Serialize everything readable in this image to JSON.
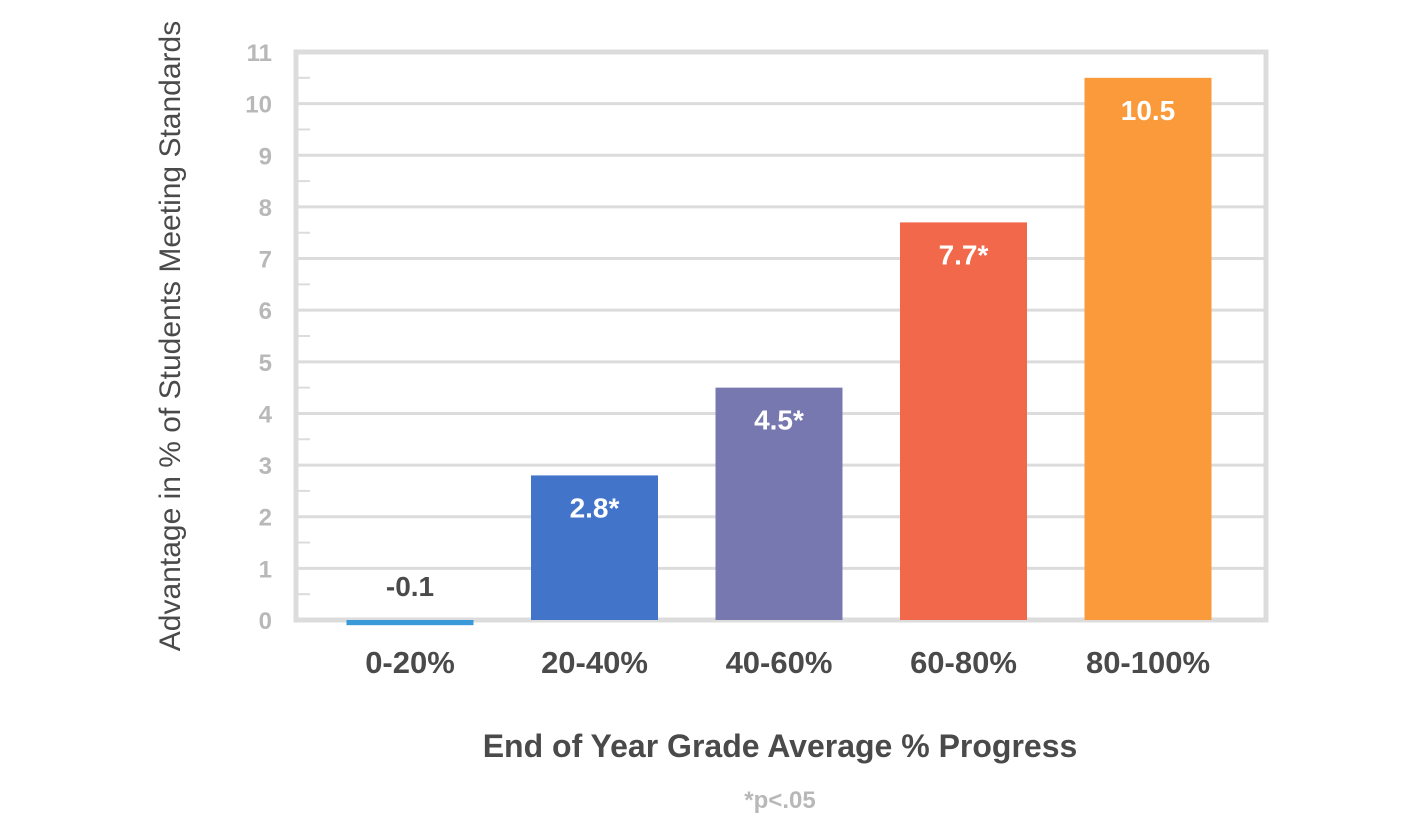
{
  "chart_data": {
    "type": "bar",
    "categories": [
      "0-20%",
      "20-40%",
      "40-60%",
      "60-80%",
      "80-100%"
    ],
    "values": [
      -0.1,
      2.8,
      4.5,
      7.7,
      10.5
    ],
    "data_labels": [
      "-0.1",
      "2.8*",
      "4.5*",
      "7.7*",
      "10.5"
    ],
    "colors": [
      "#3a9ad9",
      "#4275c9",
      "#7878b0",
      "#f2684a",
      "#fa9a3a"
    ],
    "label_colors": [
      "#4a4a4a",
      "#ffffff",
      "#ffffff",
      "#ffffff",
      "#ffffff"
    ],
    "title": "",
    "xlabel": "End of Year Grade Average % Progress",
    "ylabel": "Advantage in % of Students Meeting Standards",
    "ylim": [
      0,
      11
    ],
    "yticks": [
      0,
      1,
      2,
      3,
      4,
      5,
      6,
      7,
      8,
      9,
      10,
      11
    ],
    "grid": true,
    "legend": "none",
    "footnote": "*p<.05"
  }
}
